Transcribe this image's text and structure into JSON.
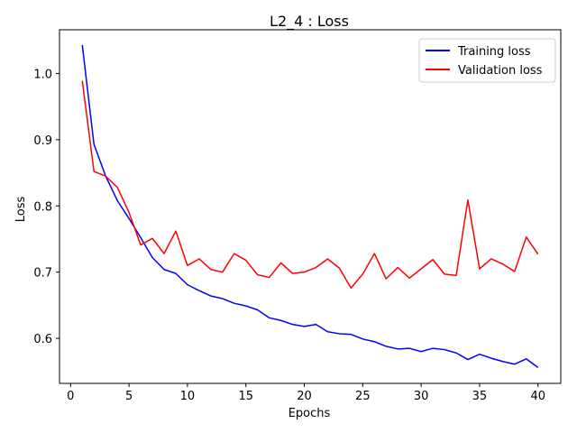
{
  "chart_data": {
    "type": "line",
    "title": "L2_4 : Loss",
    "xlabel": "Epochs",
    "ylabel": "Loss",
    "xlim": [
      -0.95,
      41.95
    ],
    "ylim": [
      0.532,
      1.066
    ],
    "xticks": [
      0,
      5,
      10,
      15,
      20,
      25,
      30,
      35,
      40
    ],
    "xtick_labels": [
      "0",
      "5",
      "10",
      "15",
      "20",
      "25",
      "30",
      "35",
      "40"
    ],
    "yticks": [
      0.6,
      0.7,
      0.8,
      0.9,
      1.0
    ],
    "ytick_labels": [
      "0.6",
      "0.7",
      "0.8",
      "0.9",
      "1.0"
    ],
    "grid": false,
    "legend_position": "top-right",
    "x": [
      1,
      2,
      3,
      4,
      5,
      6,
      7,
      8,
      9,
      10,
      11,
      12,
      13,
      14,
      15,
      16,
      17,
      18,
      19,
      20,
      21,
      22,
      23,
      24,
      25,
      26,
      27,
      28,
      29,
      30,
      31,
      32,
      33,
      34,
      35,
      36,
      37,
      38,
      39,
      40
    ],
    "series": [
      {
        "name": "Training loss",
        "color": "#0000ff",
        "values": [
          1.043,
          0.893,
          0.845,
          0.808,
          0.781,
          0.752,
          0.722,
          0.704,
          0.698,
          0.681,
          0.672,
          0.664,
          0.66,
          0.653,
          0.649,
          0.643,
          0.631,
          0.627,
          0.621,
          0.618,
          0.621,
          0.61,
          0.607,
          0.606,
          0.599,
          0.595,
          0.588,
          0.584,
          0.585,
          0.58,
          0.585,
          0.583,
          0.578,
          0.568,
          0.576,
          0.57,
          0.565,
          0.561,
          0.569,
          0.556
        ]
      },
      {
        "name": "Validation loss",
        "color": "#ff0000",
        "values": [
          0.989,
          0.852,
          0.845,
          0.828,
          0.79,
          0.741,
          0.751,
          0.728,
          0.762,
          0.71,
          0.72,
          0.704,
          0.7,
          0.728,
          0.718,
          0.696,
          0.692,
          0.714,
          0.698,
          0.7,
          0.707,
          0.72,
          0.706,
          0.676,
          0.697,
          0.728,
          0.69,
          0.707,
          0.691,
          0.705,
          0.719,
          0.697,
          0.695,
          0.809,
          0.705,
          0.72,
          0.712,
          0.701,
          0.753,
          0.727
        ]
      }
    ]
  }
}
